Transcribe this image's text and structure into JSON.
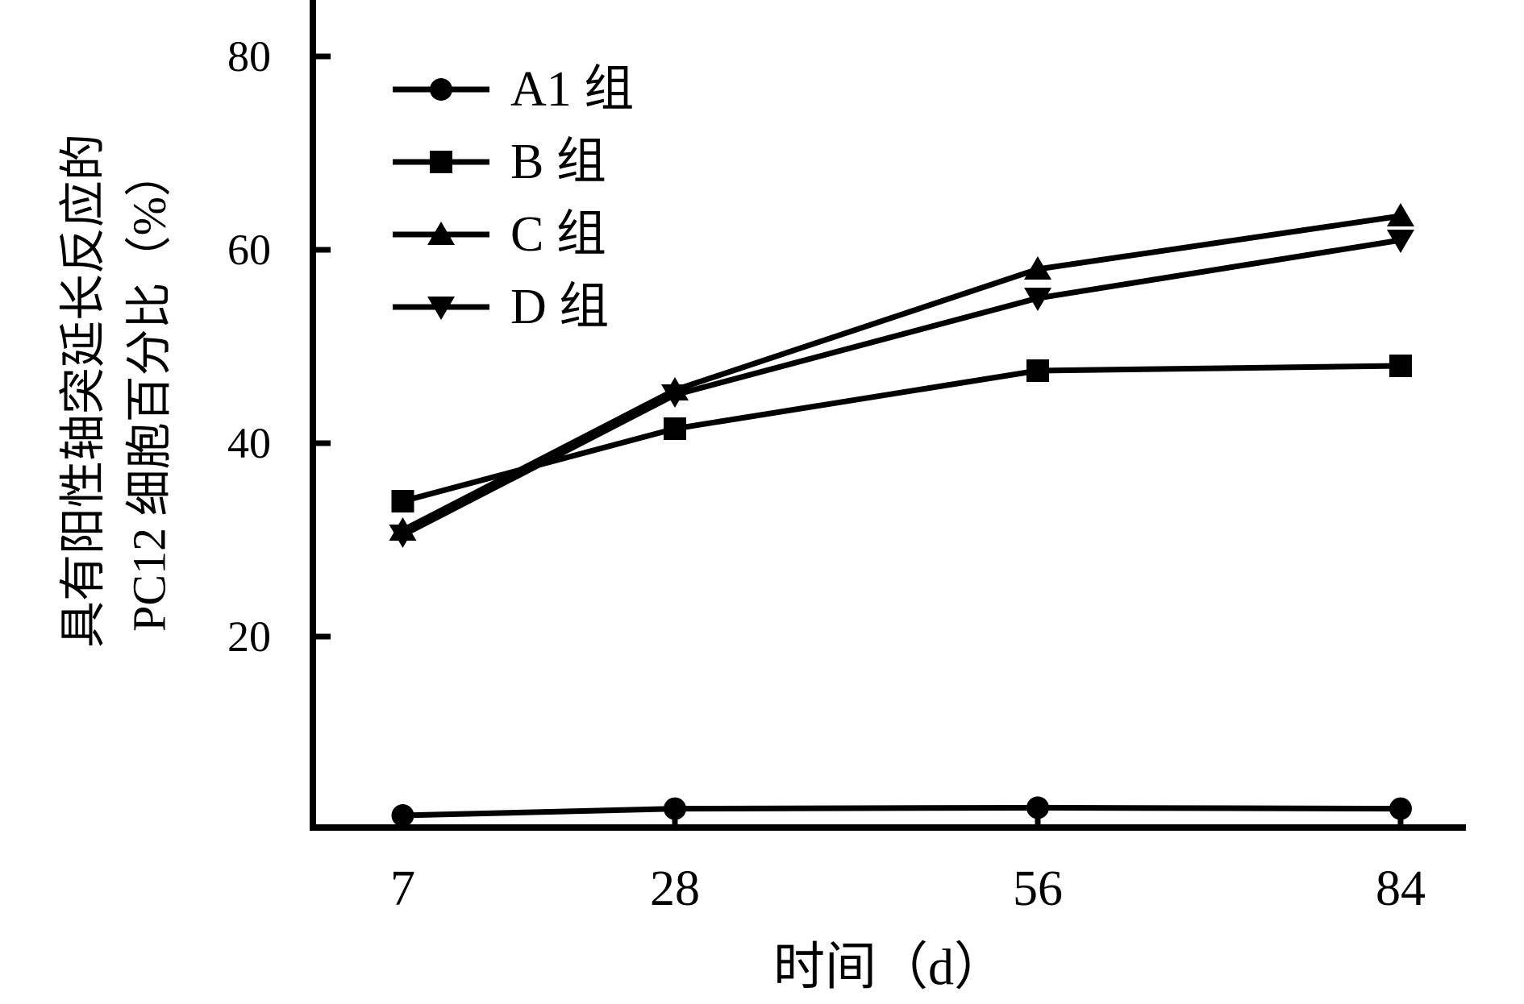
{
  "chart_data": {
    "type": "line",
    "title": "",
    "xlabel": "时间（d）",
    "ylabel_lines": [
      "具有阳性轴突延长反应的",
      "PC12 细胞百分比（%）"
    ],
    "x": [
      7,
      28,
      56,
      84
    ],
    "x_tick_labels": [
      "7",
      "28",
      "56",
      "84"
    ],
    "y_ticks": [
      20,
      40,
      60,
      80
    ],
    "y_tick_labels": [
      "20",
      "40",
      "60",
      "80"
    ],
    "xlim": [
      0,
      89
    ],
    "ylim": [
      0,
      85.8
    ],
    "grid": false,
    "legend_position": "upper-left-inside",
    "series": [
      {
        "name": "A1 组",
        "marker": "circle",
        "values": [
          1.5,
          2.2,
          2.3,
          2.2
        ]
      },
      {
        "name": "B 组",
        "marker": "square",
        "values": [
          34,
          41.5,
          47.5,
          48
        ]
      },
      {
        "name": "C 组",
        "marker": "triangle-up",
        "values": [
          31,
          45.5,
          58,
          63.5
        ]
      },
      {
        "name": "D 组",
        "marker": "triangle-down",
        "values": [
          30.5,
          45,
          55,
          61
        ]
      }
    ],
    "colors": {
      "foreground": "#000000",
      "background": "#ffffff"
    }
  }
}
